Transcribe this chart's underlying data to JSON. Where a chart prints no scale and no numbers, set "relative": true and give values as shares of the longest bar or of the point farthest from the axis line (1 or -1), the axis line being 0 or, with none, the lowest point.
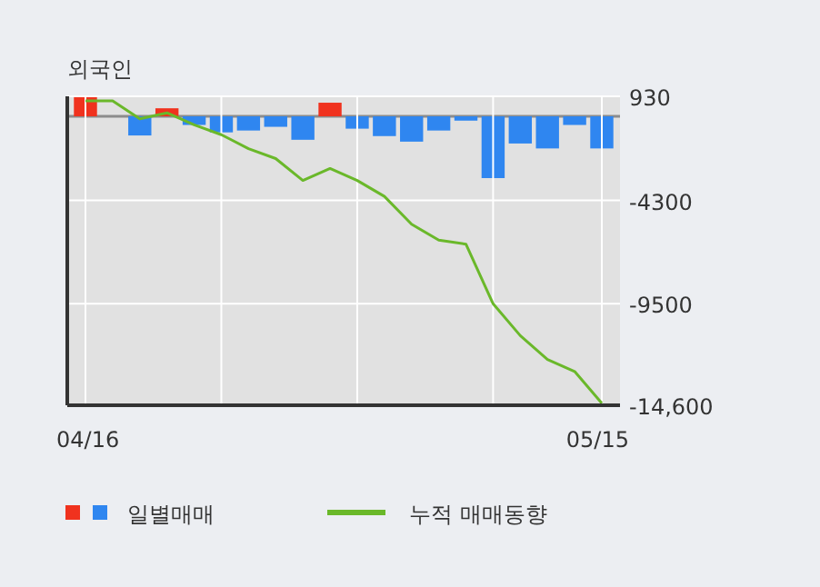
{
  "chart_data": [
    {
      "type": "bar",
      "title": "외국인",
      "categories": [
        "04/16",
        null,
        null,
        null,
        null,
        null,
        null,
        null,
        null,
        null,
        null,
        null,
        null,
        null,
        null,
        null,
        null,
        null,
        null,
        "05/15"
      ],
      "relative": true,
      "legend": "bottom",
      "series": [
        {
          "name": "일별매매",
          "colors": [
            "#f0321e",
            "#2f86f0",
            "#2f86f0",
            "#f0321e",
            "#2f86f0",
            "#2f86f0",
            "#2f86f0",
            "#2f86f0",
            "#2f86f0",
            "#f0321e",
            "#2f86f0",
            "#2f86f0",
            "#2f86f0",
            "#2f86f0",
            "#2f86f0",
            "#2f86f0",
            "#2f86f0",
            "#2f86f0",
            "#2f86f0",
            "#2f86f0"
          ],
          "values": [
            0.31,
            0,
            -0.31,
            0.13,
            -0.14,
            -0.26,
            -0.23,
            -0.17,
            -0.38,
            0.22,
            -0.2,
            -0.32,
            -0.41,
            -0.23,
            -0.07,
            -1,
            -0.44,
            -0.52,
            -0.14,
            -0.52
          ]
        }
      ]
    },
    {
      "type": "line",
      "categories": [
        null,
        null,
        null,
        null,
        null,
        null,
        null,
        null,
        null,
        null,
        null,
        null,
        null,
        null,
        null,
        null,
        null,
        null,
        null,
        null
      ],
      "ylim": [
        -14600,
        930
      ],
      "yticks": [
        930,
        -4300,
        -9500,
        {
          "value": -14600,
          "label": "-14,600"
        }
      ],
      "grid": true,
      "legend": "bottom",
      "series": [
        {
          "name": "누적 매매동향",
          "color": "#6ab82a",
          "values": [
            700,
            700,
            -200,
            100,
            -500,
            -1000,
            -1700,
            -2200,
            -3300,
            -2700,
            -3300,
            -4100,
            -5500,
            -6300,
            -6500,
            -9500,
            -11100,
            -12300,
            -12900,
            -14500
          ]
        }
      ]
    }
  ]
}
